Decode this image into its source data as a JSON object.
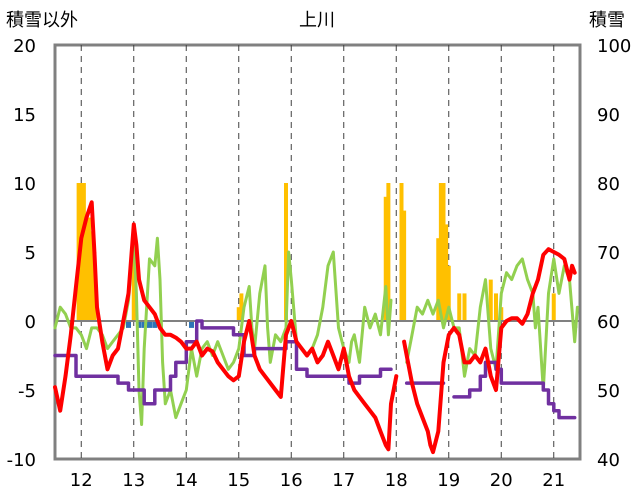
{
  "chart_data": {
    "type": "line",
    "title": "上川",
    "left_axis": {
      "label": "積雪以外",
      "min": -10,
      "max": 20,
      "ticks": [
        "-10",
        "-5",
        "0",
        "5",
        "10",
        "15",
        "20"
      ]
    },
    "right_axis": {
      "label": "積雪",
      "min": 40,
      "max": 100,
      "ticks": [
        "40",
        "50",
        "60",
        "70",
        "80",
        "90",
        "100"
      ]
    },
    "x_axis": {
      "min": 11.5,
      "max": 21.5,
      "tick_values": [
        12,
        13,
        14,
        15,
        16,
        17,
        18,
        19,
        20,
        21
      ],
      "ticks": [
        "12",
        "13",
        "14",
        "15",
        "16",
        "17",
        "18",
        "19",
        "20",
        "21"
      ]
    },
    "grid": "vertical dashed lines at each day",
    "colors": {
      "red": "#ff0000",
      "green": "#92d050",
      "purple": "#7030a0",
      "orange": "#ffc000",
      "blue": "#2e75b6"
    },
    "series": [
      {
        "color": "#ff0000",
        "axis": "left",
        "type": "line",
        "points": [
          [
            11.5,
            -4.8
          ],
          [
            11.6,
            -6.5
          ],
          [
            11.7,
            -4
          ],
          [
            11.8,
            -1
          ],
          [
            11.9,
            2.5
          ],
          [
            12.0,
            6
          ],
          [
            12.1,
            7.5
          ],
          [
            12.2,
            8.6
          ],
          [
            12.25,
            5
          ],
          [
            12.3,
            1
          ],
          [
            12.4,
            -1.5
          ],
          [
            12.5,
            -3.5
          ],
          [
            12.6,
            -2.5
          ],
          [
            12.7,
            -2
          ],
          [
            12.8,
            0
          ],
          [
            12.9,
            2
          ],
          [
            13.0,
            7
          ],
          [
            13.05,
            5.5
          ],
          [
            13.1,
            3
          ],
          [
            13.2,
            1.5
          ],
          [
            13.3,
            1
          ],
          [
            13.4,
            0.5
          ],
          [
            13.5,
            -0.5
          ],
          [
            13.6,
            -1
          ],
          [
            13.7,
            -1
          ],
          [
            13.8,
            -1.2
          ],
          [
            13.9,
            -1.5
          ],
          [
            14.0,
            -2
          ],
          [
            14.1,
            -2
          ],
          [
            14.2,
            -1.5
          ],
          [
            14.3,
            -2.5
          ],
          [
            14.4,
            -2
          ],
          [
            14.5,
            -2.2
          ],
          [
            14.6,
            -3
          ],
          [
            14.7,
            -3.5
          ],
          [
            14.8,
            -4
          ],
          [
            14.9,
            -4.3
          ],
          [
            15.0,
            -4
          ],
          [
            15.1,
            -1.5
          ],
          [
            15.2,
            0
          ],
          [
            15.3,
            -2.5
          ],
          [
            15.4,
            -3.5
          ],
          [
            15.5,
            -4
          ],
          [
            15.6,
            -4.5
          ],
          [
            15.7,
            -5
          ],
          [
            15.8,
            -5.5
          ],
          [
            15.9,
            -1
          ],
          [
            16.0,
            0
          ],
          [
            16.1,
            -1.5
          ],
          [
            16.2,
            -2
          ],
          [
            16.3,
            -2.5
          ],
          [
            16.4,
            -2
          ],
          [
            16.5,
            -3
          ],
          [
            16.6,
            -2.5
          ],
          [
            16.7,
            -1.5
          ],
          [
            16.8,
            -2.5
          ],
          [
            16.9,
            -3.5
          ],
          [
            17.0,
            -2
          ],
          [
            17.1,
            -4
          ],
          [
            17.2,
            -5
          ],
          [
            17.3,
            -5.5
          ],
          [
            17.4,
            -6
          ],
          [
            17.5,
            -6.5
          ],
          [
            17.6,
            -7
          ],
          [
            17.7,
            -8
          ],
          [
            17.8,
            -9
          ],
          [
            17.85,
            -9.3
          ],
          [
            17.9,
            -6
          ],
          [
            18.0,
            -4
          ]
        ],
        "points_b": [
          [
            18.15,
            -1.5
          ],
          [
            18.2,
            -2.5
          ],
          [
            18.3,
            -4.5
          ],
          [
            18.4,
            -6
          ],
          [
            18.5,
            -7
          ],
          [
            18.6,
            -8
          ],
          [
            18.65,
            -9
          ],
          [
            18.7,
            -9.5
          ],
          [
            18.8,
            -8
          ],
          [
            18.9,
            -3
          ],
          [
            19.0,
            -1
          ],
          [
            19.1,
            -0.5
          ],
          [
            19.2,
            -1
          ],
          [
            19.3,
            -3
          ],
          [
            19.4,
            -3
          ],
          [
            19.5,
            -2.5
          ],
          [
            19.6,
            -3
          ],
          [
            19.7,
            -2
          ],
          [
            19.8,
            -4
          ],
          [
            19.9,
            -5
          ],
          [
            20.0,
            -0.5
          ],
          [
            20.1,
            0
          ],
          [
            20.2,
            0.2
          ],
          [
            20.3,
            0.2
          ],
          [
            20.4,
            -0.2
          ],
          [
            20.5,
            0.5
          ],
          [
            20.6,
            2
          ],
          [
            20.7,
            3
          ],
          [
            20.8,
            4.8
          ],
          [
            20.9,
            5.2
          ],
          [
            21.0,
            5
          ],
          [
            21.1,
            4.8
          ],
          [
            21.2,
            4.5
          ],
          [
            21.3,
            3
          ],
          [
            21.35,
            4
          ],
          [
            21.4,
            3.5
          ]
        ]
      },
      {
        "color": "#92d050",
        "axis": "left",
        "type": "line",
        "points": [
          [
            11.5,
            -0.5
          ],
          [
            11.6,
            1
          ],
          [
            11.7,
            0.5
          ],
          [
            11.8,
            -0.5
          ],
          [
            11.9,
            -0.5
          ],
          [
            12.0,
            -1
          ],
          [
            12.1,
            -2
          ],
          [
            12.2,
            -0.5
          ],
          [
            12.3,
            -0.5
          ],
          [
            12.4,
            -1
          ],
          [
            12.5,
            -2
          ],
          [
            12.6,
            -1.5
          ],
          [
            12.7,
            -1
          ],
          [
            12.8,
            -0.5
          ],
          [
            12.9,
            1.5
          ],
          [
            13.0,
            6
          ],
          [
            13.05,
            2
          ],
          [
            13.1,
            -5
          ],
          [
            13.15,
            -7.5
          ],
          [
            13.2,
            -2
          ],
          [
            13.3,
            4.5
          ],
          [
            13.4,
            4
          ],
          [
            13.45,
            6
          ],
          [
            13.5,
            3
          ],
          [
            13.55,
            -3
          ],
          [
            13.6,
            -6
          ],
          [
            13.7,
            -5
          ],
          [
            13.8,
            -7
          ],
          [
            13.9,
            -6
          ],
          [
            14.0,
            -5
          ],
          [
            14.1,
            -2
          ],
          [
            14.2,
            -4
          ],
          [
            14.3,
            -2
          ],
          [
            14.4,
            -1.5
          ],
          [
            14.5,
            -2.5
          ],
          [
            14.6,
            -1.5
          ],
          [
            14.7,
            -2.5
          ],
          [
            14.8,
            -3.5
          ],
          [
            14.9,
            -3
          ],
          [
            15.0,
            -2
          ],
          [
            15.1,
            1
          ],
          [
            15.2,
            2.5
          ],
          [
            15.25,
            -0.5
          ],
          [
            15.3,
            -2
          ],
          [
            15.4,
            2
          ],
          [
            15.5,
            4
          ],
          [
            15.55,
            -0.5
          ],
          [
            15.6,
            -3
          ],
          [
            15.7,
            -1
          ],
          [
            15.8,
            -1.5
          ],
          [
            15.9,
            -0.5
          ],
          [
            15.95,
            5
          ],
          [
            16.0,
            3
          ],
          [
            16.1,
            -1.5
          ],
          [
            16.2,
            -2
          ],
          [
            16.3,
            -2.5
          ],
          [
            16.4,
            -2
          ],
          [
            16.5,
            -1
          ],
          [
            16.6,
            1
          ],
          [
            16.7,
            4
          ],
          [
            16.8,
            5
          ],
          [
            16.9,
            -0.5
          ],
          [
            17.0,
            -2
          ],
          [
            17.1,
            -3
          ],
          [
            17.15,
            -1.5
          ],
          [
            17.2,
            -1
          ],
          [
            17.3,
            -3
          ],
          [
            17.4,
            1
          ],
          [
            17.5,
            -0.5
          ],
          [
            17.6,
            0.5
          ],
          [
            17.7,
            -1
          ],
          [
            17.8,
            2.5
          ],
          [
            17.85,
            -1
          ],
          [
            17.9,
            1.5
          ]
        ],
        "points_b": [
          [
            18.2,
            -3
          ],
          [
            18.3,
            -1
          ],
          [
            18.4,
            1
          ],
          [
            18.5,
            0.5
          ],
          [
            18.6,
            1.5
          ],
          [
            18.7,
            0.5
          ],
          [
            18.8,
            1.5
          ],
          [
            18.9,
            -0.5
          ],
          [
            19.0,
            1
          ],
          [
            19.1,
            -0.5
          ],
          [
            19.2,
            -0.5
          ],
          [
            19.3,
            -4
          ],
          [
            19.4,
            -2
          ],
          [
            19.5,
            -2.5
          ],
          [
            19.6,
            1
          ],
          [
            19.7,
            3
          ],
          [
            19.8,
            -2
          ],
          [
            19.9,
            -3.5
          ],
          [
            20.0,
            2
          ],
          [
            20.1,
            3.5
          ],
          [
            20.2,
            3
          ],
          [
            20.3,
            4
          ],
          [
            20.4,
            4.5
          ],
          [
            20.5,
            3
          ],
          [
            20.6,
            2
          ],
          [
            20.65,
            -0.5
          ],
          [
            20.7,
            1
          ],
          [
            20.8,
            -5
          ],
          [
            20.9,
            2
          ],
          [
            21.0,
            4.5
          ],
          [
            21.1,
            2
          ],
          [
            21.2,
            4
          ],
          [
            21.3,
            3
          ],
          [
            21.4,
            -1.5
          ],
          [
            21.45,
            1
          ]
        ]
      },
      {
        "color": "#7030a0",
        "axis": "left",
        "type": "step",
        "points": [
          [
            11.5,
            -2.5
          ],
          [
            11.9,
            -2.5
          ],
          [
            11.9,
            -4
          ],
          [
            12.7,
            -4
          ],
          [
            12.7,
            -4.5
          ],
          [
            12.9,
            -4.5
          ],
          [
            12.9,
            -5
          ],
          [
            13.2,
            -5
          ],
          [
            13.2,
            -6
          ],
          [
            13.4,
            -6
          ],
          [
            13.4,
            -5
          ],
          [
            13.7,
            -5
          ],
          [
            13.7,
            -4
          ],
          [
            13.8,
            -4
          ],
          [
            13.8,
            -3
          ],
          [
            14.0,
            -3
          ],
          [
            14.0,
            -1.5
          ],
          [
            14.2,
            -1.5
          ],
          [
            14.2,
            0
          ],
          [
            14.3,
            0
          ],
          [
            14.3,
            -0.5
          ],
          [
            14.9,
            -0.5
          ],
          [
            14.9,
            -1
          ],
          [
            15.1,
            -1
          ],
          [
            15.1,
            -2.5
          ],
          [
            15.3,
            -2.5
          ],
          [
            15.3,
            -2
          ],
          [
            15.9,
            -2
          ],
          [
            15.9,
            -1.5
          ],
          [
            16.1,
            -1.5
          ],
          [
            16.1,
            -3.5
          ],
          [
            16.3,
            -3.5
          ],
          [
            16.3,
            -4
          ],
          [
            17.1,
            -4
          ],
          [
            17.1,
            -4.5
          ],
          [
            17.3,
            -4.5
          ],
          [
            17.3,
            -4
          ],
          [
            17.7,
            -4
          ],
          [
            17.7,
            -3.5
          ],
          [
            17.9,
            -3.5
          ]
        ],
        "points_b": [
          [
            18.2,
            -4.5
          ],
          [
            18.9,
            -4.5
          ]
        ],
        "points_c": [
          [
            19.1,
            -5.5
          ],
          [
            19.4,
            -5.5
          ],
          [
            19.4,
            -5
          ],
          [
            19.6,
            -5
          ],
          [
            19.6,
            -4
          ],
          [
            19.7,
            -4
          ],
          [
            19.7,
            -3
          ],
          [
            19.9,
            -3
          ],
          [
            19.9,
            -3.5
          ],
          [
            20.0,
            -3.5
          ],
          [
            20.0,
            -4.5
          ],
          [
            20.8,
            -4.5
          ],
          [
            20.8,
            -5
          ],
          [
            20.9,
            -5
          ],
          [
            20.9,
            -6
          ],
          [
            21.0,
            -6
          ],
          [
            21.0,
            -6.5
          ],
          [
            21.1,
            -6.5
          ],
          [
            21.1,
            -7
          ],
          [
            21.4,
            -7
          ]
        ]
      }
    ],
    "bars": {
      "orange": [
        [
          11.95,
          80
        ],
        [
          12.0,
          80
        ],
        [
          12.05,
          80
        ],
        [
          12.1,
          75
        ],
        [
          12.15,
          75
        ],
        [
          12.2,
          73
        ],
        [
          12.25,
          70
        ],
        [
          13.0,
          70
        ],
        [
          15.0,
          62
        ],
        [
          15.05,
          64
        ],
        [
          15.9,
          80
        ],
        [
          17.8,
          78
        ],
        [
          17.85,
          80
        ],
        [
          18.1,
          80
        ],
        [
          18.15,
          76
        ],
        [
          18.8,
          72
        ],
        [
          18.85,
          80
        ],
        [
          18.9,
          80
        ],
        [
          18.95,
          74
        ],
        [
          19.0,
          68
        ],
        [
          19.2,
          64
        ],
        [
          19.3,
          64
        ],
        [
          19.8,
          66
        ],
        [
          19.9,
          64
        ],
        [
          20.0,
          62
        ],
        [
          21.0,
          64
        ]
      ],
      "blue": [
        [
          12.9,
          -0.5
        ],
        [
          13.1,
          -0.5
        ],
        [
          13.2,
          -0.5
        ],
        [
          13.3,
          -0.5
        ],
        [
          13.4,
          -0.5
        ],
        [
          14.1,
          -0.5
        ],
        [
          21.4,
          -0.5
        ]
      ]
    }
  }
}
